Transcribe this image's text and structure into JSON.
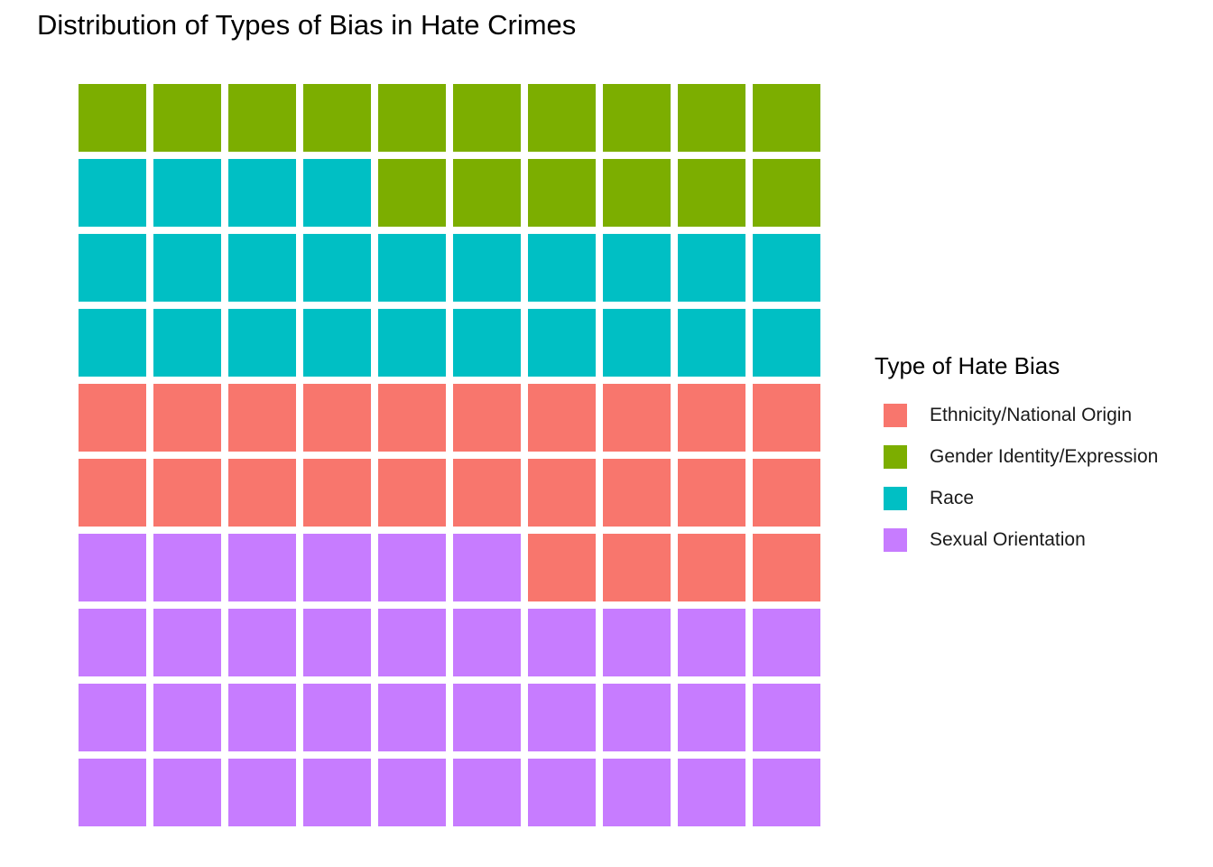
{
  "chart_data": {
    "type": "waffle",
    "title": "Distribution of Types of Bias in Hate Crimes",
    "grid": {
      "rows": 10,
      "cols": 10
    },
    "legend": {
      "title": "Type of Hate Bias",
      "placement": "right"
    },
    "categories": [
      "Ethnicity/National Origin",
      "Gender Identity/Expression",
      "Race",
      "Sexual Orientation"
    ],
    "series": [
      {
        "name": "Sexual Orientation",
        "value": 36,
        "color": "#C77CFF"
      },
      {
        "name": "Ethnicity/National Origin",
        "value": 24,
        "color": "#F8766D"
      },
      {
        "name": "Race",
        "value": 24,
        "color": "#00BFC4"
      },
      {
        "name": "Gender Identity/Expression",
        "value": 16,
        "color": "#7CAE00"
      }
    ]
  },
  "legend_items": [
    {
      "label": "Ethnicity/National Origin",
      "color": "#F8766D"
    },
    {
      "label": "Gender Identity/Expression",
      "color": "#7CAE00"
    },
    {
      "label": "Race",
      "color": "#00BFC4"
    },
    {
      "label": "Sexual Orientation",
      "color": "#C77CFF"
    }
  ]
}
